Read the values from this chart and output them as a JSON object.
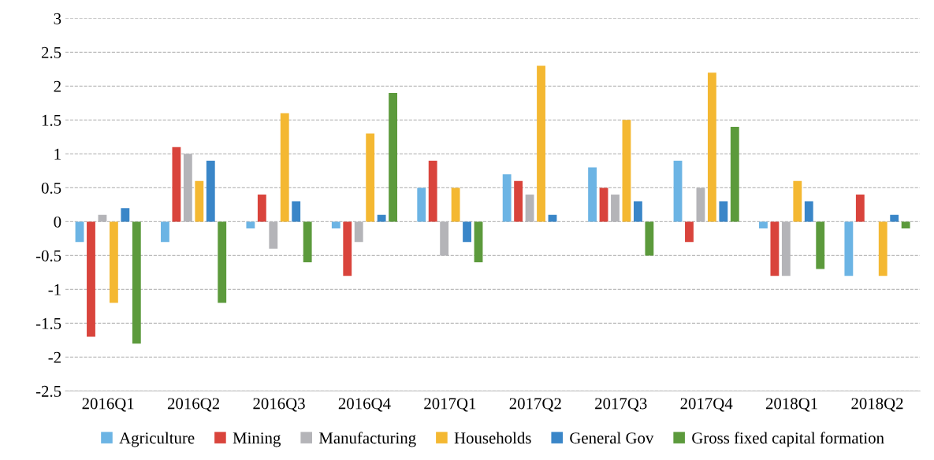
{
  "chart_data": {
    "type": "bar",
    "categories": [
      "2016Q1",
      "2016Q2",
      "2016Q3",
      "2016Q4",
      "2017Q1",
      "2017Q2",
      "2017Q3",
      "2017Q4",
      "2018Q1",
      "2018Q2"
    ],
    "series": [
      {
        "name": "Agriculture",
        "color": "#6cb4e4",
        "values": [
          -0.3,
          -0.3,
          -0.1,
          -0.1,
          0.5,
          0.7,
          0.8,
          0.9,
          -0.1,
          -0.8
        ]
      },
      {
        "name": "Mining",
        "color": "#d9443c",
        "values": [
          -1.7,
          1.1,
          0.4,
          -0.8,
          0.9,
          0.6,
          0.5,
          -0.3,
          -0.8,
          0.4
        ]
      },
      {
        "name": "Manufacturing",
        "color": "#b4b4b8",
        "values": [
          0.1,
          1.0,
          -0.4,
          -0.3,
          -0.5,
          0.4,
          0.4,
          0.5,
          -0.8,
          0
        ]
      },
      {
        "name": "Households",
        "color": "#f4b832",
        "values": [
          -1.2,
          0.6,
          1.6,
          1.3,
          0.5,
          2.3,
          1.5,
          2.2,
          0.6,
          -0.8
        ]
      },
      {
        "name": "General Gov",
        "color": "#3a86c8",
        "values": [
          0.2,
          0.9,
          0.3,
          0.1,
          -0.3,
          0.1,
          0.3,
          0.3,
          0.3,
          0.1
        ]
      },
      {
        "name": "Gross fixed capital formation",
        "color": "#5c9a3c",
        "values": [
          -1.8,
          -1.2,
          -0.6,
          1.9,
          -0.6,
          0,
          -0.5,
          1.4,
          -0.7,
          -0.1
        ]
      }
    ],
    "ylim": [
      -2.5,
      3
    ],
    "yticks": [
      -2.5,
      -2,
      -1.5,
      -1,
      -0.5,
      0,
      0.5,
      1,
      1.5,
      2,
      2.5,
      3
    ],
    "grid": "y",
    "legend": "bottom"
  }
}
